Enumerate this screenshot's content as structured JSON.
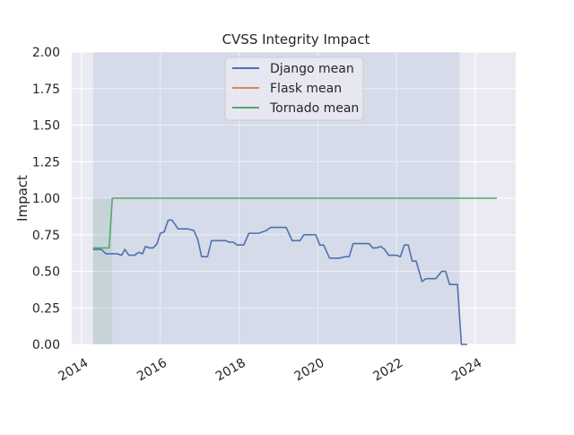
{
  "chart_data": {
    "type": "line",
    "title": "CVSS Integrity Impact",
    "xlabel": "",
    "ylabel": "Impact",
    "xlim": [
      2013.75,
      2025.03
    ],
    "ylim": [
      0,
      2
    ],
    "x_tick_labels": [
      "2014",
      "2016",
      "2018",
      "2020",
      "2022",
      "2024"
    ],
    "x_tick_values": [
      2014,
      2016,
      2018,
      2020,
      2022,
      2024
    ],
    "y_tick_labels": [
      "0.00",
      "0.25",
      "0.50",
      "0.75",
      "1.00",
      "1.25",
      "1.50",
      "1.75",
      "2.00"
    ],
    "y_tick_values": [
      0,
      0.25,
      0.5,
      0.75,
      1.0,
      1.25,
      1.5,
      1.75,
      2.0
    ],
    "grid": true,
    "legend_position": "top-center",
    "background_color": "#eaeaf2",
    "series": [
      {
        "name": "Django mean",
        "color": "#4c72b0",
        "x": [
          2014.29,
          2014.5,
          2014.62,
          2014.7,
          2014.9,
          2015.02,
          2015.1,
          2015.2,
          2015.35,
          2015.45,
          2015.55,
          2015.62,
          2015.72,
          2015.82,
          2015.92,
          2016.0,
          2016.1,
          2016.2,
          2016.3,
          2016.45,
          2016.6,
          2016.7,
          2016.85,
          2016.95,
          2017.05,
          2017.15,
          2017.2,
          2017.3,
          2017.4,
          2017.55,
          2017.65,
          2017.75,
          2017.85,
          2017.95,
          2018.05,
          2018.12,
          2018.25,
          2018.3,
          2018.4,
          2018.5,
          2018.6,
          2018.7,
          2018.8,
          2018.9,
          2019.0,
          2019.2,
          2019.35,
          2019.45,
          2019.55,
          2019.65,
          2019.75,
          2019.85,
          2019.95,
          2020.05,
          2020.15,
          2020.3,
          2020.45,
          2020.55,
          2020.7,
          2020.8,
          2020.9,
          2021.0,
          2021.1,
          2021.2,
          2021.3,
          2021.4,
          2021.5,
          2021.6,
          2021.7,
          2021.8,
          2021.9,
          2022.0,
          2022.1,
          2022.2,
          2022.3,
          2022.4,
          2022.5,
          2022.65,
          2022.75,
          2022.85,
          2023.0,
          2023.15,
          2023.25,
          2023.35,
          2023.45,
          2023.55,
          2023.65,
          2023.72,
          2023.8
        ],
        "values": [
          0.65,
          0.65,
          0.62,
          0.62,
          0.62,
          0.61,
          0.65,
          0.61,
          0.61,
          0.63,
          0.62,
          0.67,
          0.66,
          0.66,
          0.69,
          0.76,
          0.77,
          0.85,
          0.85,
          0.79,
          0.79,
          0.79,
          0.78,
          0.72,
          0.6,
          0.6,
          0.6,
          0.71,
          0.71,
          0.71,
          0.71,
          0.7,
          0.7,
          0.68,
          0.68,
          0.68,
          0.76,
          0.76,
          0.76,
          0.76,
          0.77,
          0.78,
          0.8,
          0.8,
          0.8,
          0.8,
          0.71,
          0.71,
          0.71,
          0.75,
          0.75,
          0.75,
          0.75,
          0.68,
          0.68,
          0.59,
          0.59,
          0.59,
          0.6,
          0.6,
          0.69,
          0.69,
          0.69,
          0.69,
          0.69,
          0.66,
          0.66,
          0.67,
          0.65,
          0.61,
          0.61,
          0.61,
          0.6,
          0.68,
          0.68,
          0.57,
          0.57,
          0.43,
          0.45,
          0.45,
          0.45,
          0.5,
          0.5,
          0.41,
          0.41,
          0.41,
          0.0,
          0.0,
          0.0
        ]
      },
      {
        "name": "Flask mean",
        "color": "#dd8452",
        "x": [],
        "values": []
      },
      {
        "name": "Tornado mean",
        "color": "#55a868",
        "x": [
          2014.29,
          2014.7,
          2014.78,
          2024.55
        ],
        "values": [
          0.66,
          0.66,
          1.0,
          1.0
        ]
      }
    ],
    "bands": [
      {
        "name": "Django band",
        "color": "#4c72b0",
        "x": [
          2014.29,
          2023.6
        ],
        "low": [
          0,
          0
        ],
        "high": [
          2,
          2
        ]
      },
      {
        "name": "Tornado band",
        "color": "#55a868",
        "x": [
          2014.29,
          2014.78
        ],
        "low": [
          0,
          0
        ],
        "high": [
          1.0,
          1.0
        ]
      }
    ]
  }
}
